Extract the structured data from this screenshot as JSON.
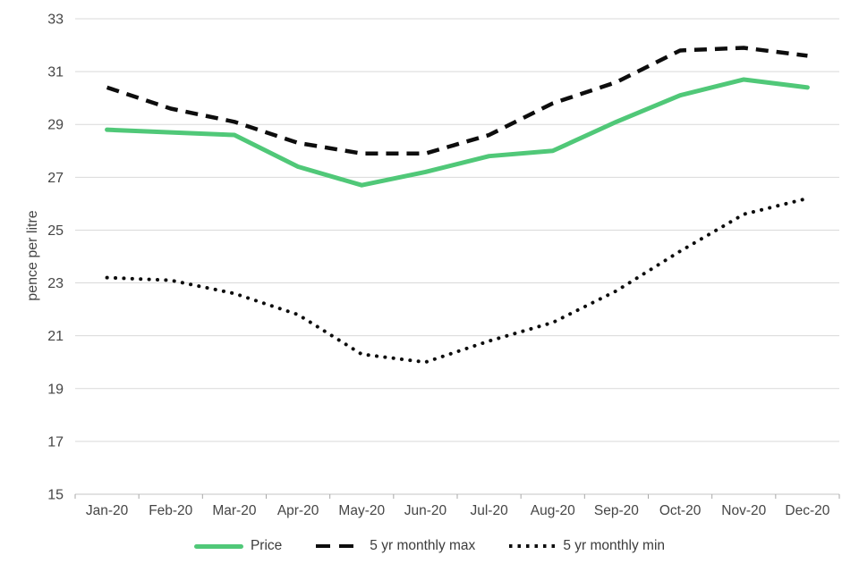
{
  "chart_data": {
    "type": "line",
    "title": "",
    "xlabel": "",
    "ylabel": "pence per litre",
    "ylim": [
      15,
      33
    ],
    "ytick_step": 2,
    "grid": "horizontal-only",
    "legend_position": "bottom",
    "categories": [
      "Jan-20",
      "Feb-20",
      "Mar-20",
      "Apr-20",
      "May-20",
      "Jun-20",
      "Jul-20",
      "Aug-20",
      "Sep-20",
      "Oct-20",
      "Nov-20",
      "Dec-20"
    ],
    "series": [
      {
        "name": "Price",
        "line_style": "solid",
        "color": "#50c878",
        "values": [
          28.8,
          28.7,
          28.6,
          27.4,
          26.7,
          27.2,
          27.8,
          28.0,
          29.1,
          30.1,
          30.7,
          30.4
        ]
      },
      {
        "name": "5 yr monthly max",
        "line_style": "dashed",
        "color": "#0d0d0d",
        "values": [
          30.4,
          29.6,
          29.1,
          28.3,
          27.9,
          27.9,
          28.6,
          29.8,
          30.6,
          31.8,
          31.9,
          31.6
        ]
      },
      {
        "name": "5 yr monthly min",
        "line_style": "dotted",
        "color": "#0d0d0d",
        "values": [
          23.2,
          23.1,
          22.6,
          21.8,
          20.3,
          20.0,
          20.8,
          21.5,
          22.7,
          24.2,
          25.6,
          26.2
        ]
      }
    ]
  },
  "colors": {
    "gridline": "#d9d9d9",
    "axis_line": "#c4c4c4",
    "tick_mark": "#a9a9a9",
    "axis_text": "#454545"
  }
}
